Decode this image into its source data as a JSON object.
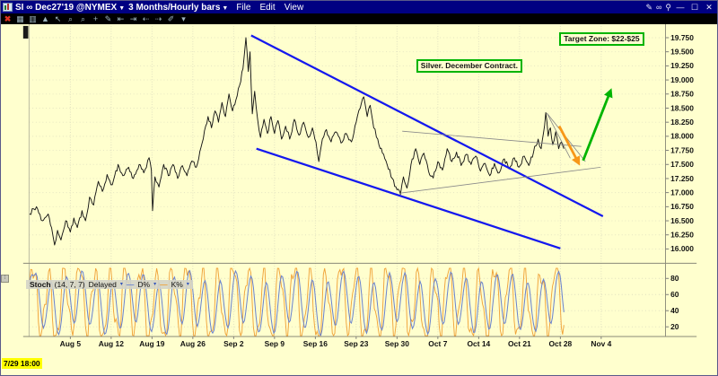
{
  "window": {
    "symbol": "SI ∞ Dec27'19 @NYMEX",
    "timeframe": "3 Months/Hourly bars",
    "menus": [
      "File",
      "Edit",
      "View"
    ],
    "right_icons": [
      "pencil-icon",
      "link-icon",
      "pin-icon"
    ],
    "controls": [
      "minimize",
      "maximize",
      "close"
    ]
  },
  "toolbar": {
    "icons": [
      "close-chart-icon",
      "grid-icon",
      "bars-style-icon",
      "triangle-icon",
      "pointer-icon",
      "zoom-in-icon",
      "zoom-out-icon",
      "crosshair-icon",
      "edit-chart-icon",
      "jump-start-icon",
      "jump-end-icon",
      "step-back-icon",
      "step-forward-icon",
      "tools-icon",
      "tools-dropdown-icon"
    ]
  },
  "colors": {
    "background": "#FFFFCE",
    "titlebar": "#000082",
    "grid": "#DCDCBE",
    "axis_line": "#8a8a78",
    "price_line": "#151515",
    "channel_blue": "#1418EE",
    "gray_line": "#8a8a8a",
    "arrow_green": "#00B400",
    "arrow_orange": "#F79718",
    "annotation_border": "#00B400",
    "highlight_yellow": "#FFFF00",
    "stoch_k": "#F0A238",
    "stoch_d": "#6B84CE"
  },
  "chart_data": [
    {
      "type": "line",
      "title": "Silver December 2019 futures, hourly",
      "x_axis": {
        "labels": [
          "Aug 5",
          "Aug 12",
          "Aug 19",
          "Aug 26",
          "Sep 2",
          "Sep 9",
          "Sep 16",
          "Sep 23",
          "Sep 30",
          "Oct 7",
          "Oct 14",
          "Oct 21",
          "Oct 28",
          "Nov 4"
        ],
        "cursor_label": "7/29 18:00",
        "days_per_label": 7
      },
      "y_axis": {
        "ticks": [
          "19.750",
          "19.500",
          "19.250",
          "19.000",
          "18.750",
          "18.500",
          "18.250",
          "18.000",
          "17.750",
          "17.500",
          "17.250",
          "17.000",
          "16.750",
          "16.500",
          "16.250",
          "16.000"
        ],
        "range": [
          15.75,
          19.95
        ]
      },
      "series": [
        {
          "name": "price",
          "points": [
            [
              0,
              16.62
            ],
            [
              1.2,
              16.75
            ],
            [
              2.2,
              16.5
            ],
            [
              3.2,
              16.62
            ],
            [
              4.0,
              16.25
            ],
            [
              4.3,
              16.07
            ],
            [
              4.8,
              16.33
            ],
            [
              5.4,
              16.16
            ],
            [
              6.2,
              16.5
            ],
            [
              7.0,
              16.3
            ],
            [
              7.6,
              16.55
            ],
            [
              8.2,
              16.38
            ],
            [
              9.0,
              16.68
            ],
            [
              9.6,
              16.5
            ],
            [
              10.3,
              16.92
            ],
            [
              11.0,
              16.78
            ],
            [
              11.8,
              17.2
            ],
            [
              12.5,
              17.02
            ],
            [
              13.3,
              17.32
            ],
            [
              14.2,
              17.14
            ],
            [
              15.2,
              17.5
            ],
            [
              16.0,
              17.3
            ],
            [
              17.0,
              17.45
            ],
            [
              17.8,
              17.25
            ],
            [
              18.8,
              17.5
            ],
            [
              19.6,
              17.35
            ],
            [
              20.5,
              17.62
            ],
            [
              20.9,
              17.4
            ],
            [
              21.1,
              16.68
            ],
            [
              21.5,
              17.28
            ],
            [
              22.2,
              17.1
            ],
            [
              23.0,
              17.5
            ],
            [
              23.8,
              17.3
            ],
            [
              24.6,
              17.5
            ],
            [
              25.4,
              17.25
            ],
            [
              26.2,
              17.48
            ],
            [
              27.0,
              17.3
            ],
            [
              27.8,
              17.56
            ],
            [
              28.6,
              17.45
            ],
            [
              29.4,
              17.8
            ],
            [
              30.0,
              18.1
            ],
            [
              30.6,
              18.35
            ],
            [
              31.2,
              18.15
            ],
            [
              31.8,
              18.45
            ],
            [
              32.4,
              18.25
            ],
            [
              33.0,
              18.6
            ],
            [
              33.6,
              18.35
            ],
            [
              34.2,
              18.75
            ],
            [
              34.8,
              18.45
            ],
            [
              35.4,
              18.65
            ],
            [
              36.0,
              18.9
            ],
            [
              36.6,
              19.2
            ],
            [
              37.1,
              19.75
            ],
            [
              37.5,
              19.15
            ],
            [
              37.8,
              19.5
            ],
            [
              38.2,
              18.4
            ],
            [
              38.6,
              18.8
            ],
            [
              39.1,
              18.3
            ],
            [
              39.6,
              17.98
            ],
            [
              40.2,
              18.3
            ],
            [
              40.8,
              18.05
            ],
            [
              41.4,
              18.35
            ],
            [
              42.0,
              18.05
            ],
            [
              42.6,
              18.28
            ],
            [
              43.2,
              17.95
            ],
            [
              43.9,
              18.18
            ],
            [
              44.6,
              17.95
            ],
            [
              45.4,
              18.3
            ],
            [
              46.2,
              18.02
            ],
            [
              47.0,
              18.25
            ],
            [
              47.8,
              17.98
            ],
            [
              48.5,
              18.15
            ],
            [
              49.1,
              17.9
            ],
            [
              49.6,
              17.55
            ],
            [
              50.2,
              17.95
            ],
            [
              50.9,
              18.12
            ],
            [
              51.7,
              17.9
            ],
            [
              52.5,
              18.08
            ],
            [
              53.4,
              17.88
            ],
            [
              54.3,
              18.05
            ],
            [
              55.2,
              17.9
            ],
            [
              56.0,
              18.25
            ],
            [
              56.7,
              18.5
            ],
            [
              57.3,
              18.7
            ],
            [
              57.9,
              18.35
            ],
            [
              58.4,
              18.55
            ],
            [
              59.0,
              18.15
            ],
            [
              59.7,
              17.95
            ],
            [
              60.5,
              17.7
            ],
            [
              61.3,
              17.5
            ],
            [
              62.2,
              17.25
            ],
            [
              63.0,
              17.05
            ],
            [
              63.6,
              16.97
            ],
            [
              64.1,
              17.28
            ],
            [
              64.7,
              17.08
            ],
            [
              65.4,
              17.5
            ],
            [
              66.2,
              17.78
            ],
            [
              66.9,
              17.5
            ],
            [
              67.6,
              17.7
            ],
            [
              68.4,
              17.38
            ],
            [
              69.2,
              17.26
            ],
            [
              70.0,
              17.55
            ],
            [
              70.8,
              17.4
            ],
            [
              71.6,
              17.78
            ],
            [
              72.4,
              17.55
            ],
            [
              73.2,
              17.72
            ],
            [
              74.0,
              17.48
            ],
            [
              74.9,
              17.68
            ],
            [
              75.7,
              17.5
            ],
            [
              76.5,
              17.65
            ],
            [
              77.3,
              17.38
            ],
            [
              78.1,
              17.52
            ],
            [
              78.9,
              17.3
            ],
            [
              79.7,
              17.52
            ],
            [
              80.5,
              17.35
            ],
            [
              81.4,
              17.6
            ],
            [
              82.2,
              17.42
            ],
            [
              83.1,
              17.62
            ],
            [
              83.9,
              17.45
            ],
            [
              84.8,
              17.65
            ],
            [
              85.6,
              17.48
            ],
            [
              86.4,
              17.72
            ],
            [
              87.2,
              17.95
            ],
            [
              87.7,
              17.78
            ],
            [
              88.1,
              18.05
            ],
            [
              88.5,
              18.42
            ],
            [
              88.9,
              18.0
            ],
            [
              89.3,
              18.15
            ],
            [
              89.7,
              17.85
            ],
            [
              90.2,
              18.08
            ],
            [
              90.7,
              17.78
            ],
            [
              91.2,
              17.9
            ],
            [
              91.6,
              17.78
            ]
          ]
        }
      ],
      "overlays": {
        "channel_lines": [
          {
            "name": "upper-channel-line",
            "from": [
              38.0,
              19.79
            ],
            "to": [
              98.3,
              16.58
            ]
          },
          {
            "name": "lower-channel-line",
            "from": [
              38.9,
              17.78
            ],
            "to": [
              91.0,
              16.01
            ]
          }
        ],
        "trend_lines": [
          {
            "name": "resistance-line",
            "from": [
              63.9,
              18.09
            ],
            "to": [
              94.6,
              17.82
            ]
          },
          {
            "name": "support-line",
            "from": [
              63.4,
              16.99
            ],
            "to": [
              97.9,
              17.45
            ]
          },
          {
            "name": "pennant-line-a",
            "from": [
              88.7,
              18.41
            ],
            "to": [
              92.7,
              17.61
            ]
          },
          {
            "name": "pennant-line-b",
            "from": [
              88.7,
              18.41
            ],
            "to": [
              95.3,
              17.55
            ]
          }
        ],
        "arrows": [
          {
            "name": "green-up-arrow",
            "color_key": "arrow_green",
            "from": [
              94.9,
              17.57
            ],
            "to": [
              99.5,
              18.78
            ]
          },
          {
            "name": "orange-down-arrow",
            "color_key": "arrow_orange",
            "from": [
              90.8,
              18.18
            ],
            "to": [
              94.0,
              17.55
            ]
          }
        ],
        "text_boxes": [
          {
            "text": "Target Zone: $22-$25",
            "at": [
              88.7,
              19.85
            ]
          },
          {
            "text": "Silver. December Contract.",
            "at": [
              65.7,
              19.4
            ]
          }
        ]
      }
    },
    {
      "type": "line",
      "name": "Stoch",
      "params_text": "(14, 7, 7)",
      "mode": "Delayed",
      "y_axis": {
        "ticks": [
          "80",
          "60",
          "40",
          "20"
        ],
        "range": [
          0,
          100
        ]
      },
      "series": [
        {
          "name": "D%",
          "color_key": "stoch_d"
        },
        {
          "name": "K%",
          "color_key": "stoch_k"
        }
      ],
      "note": "fast stochastic oscillating between ~5 and ~95, roughly 35 cycles over the visible range",
      "gen": {
        "points": 420,
        "step": 0.52,
        "d_max": 91.6
      }
    }
  ]
}
